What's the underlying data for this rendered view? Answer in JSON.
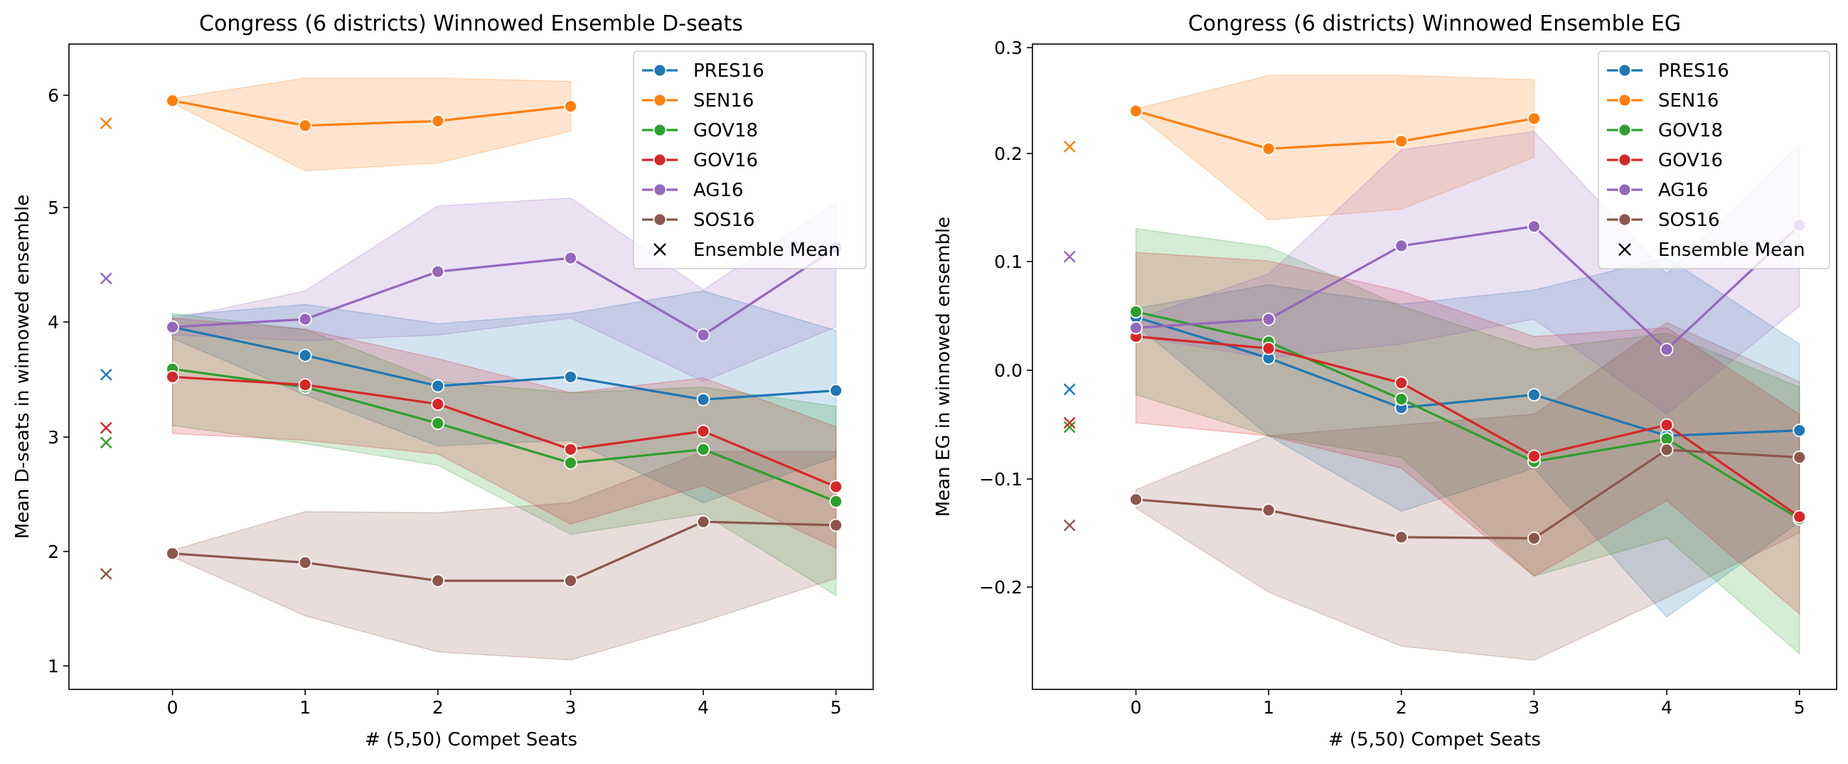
{
  "chart_data": [
    {
      "type": "line",
      "title": "Congress (6 districts) Winnowed Ensemble D-seats",
      "xlabel": "# (5,50) Compet Seats",
      "ylabel": "Mean D-seats in winnowed ensemble",
      "xlim": [
        -0.78,
        5.28
      ],
      "ylim": [
        0.8,
        6.5
      ],
      "xticks": [
        "0",
        "1",
        "2",
        "3",
        "4",
        "5"
      ],
      "yticks": [
        "1",
        "2",
        "3",
        "4",
        "5",
        "6"
      ],
      "ensemble_mean_x": -0.5,
      "legend_position": "top-right",
      "legend_marker_label": "Ensemble Mean",
      "series": [
        {
          "name": "PRES16",
          "color": "#1f77b4",
          "x": [
            0,
            1,
            2,
            3,
            4,
            5
          ],
          "y": [
            4.0,
            3.75,
            3.48,
            3.56,
            3.36,
            3.44
          ],
          "lower": [
            3.9,
            3.4,
            2.95,
            3.0,
            2.45,
            2.85
          ],
          "upper": [
            4.1,
            4.2,
            4.03,
            4.12,
            4.32,
            3.97
          ],
          "ensemble_mean": 3.58
        },
        {
          "name": "SEN16",
          "color": "#ff7f0e",
          "x": [
            0,
            1,
            2,
            3
          ],
          "y": [
            6.0,
            5.78,
            5.82,
            5.95
          ],
          "lower": [
            5.98,
            5.38,
            5.45,
            5.73
          ],
          "upper": [
            6.02,
            6.2,
            6.2,
            6.17
          ],
          "ensemble_mean": 5.8
        },
        {
          "name": "GOV18",
          "color": "#2ca02c",
          "x": [
            0,
            1,
            2,
            3,
            4,
            5
          ],
          "y": [
            3.63,
            3.47,
            3.15,
            2.8,
            2.92,
            2.46
          ],
          "lower": [
            3.13,
            2.97,
            2.78,
            2.17,
            2.35,
            1.63
          ],
          "upper": [
            4.12,
            3.98,
            3.52,
            3.42,
            3.47,
            3.3
          ],
          "ensemble_mean": 2.98
        },
        {
          "name": "GOV16",
          "color": "#d62728",
          "x": [
            0,
            1,
            2,
            3,
            4,
            5
          ],
          "y": [
            3.56,
            3.49,
            3.32,
            2.92,
            3.08,
            2.59
          ],
          "lower": [
            3.06,
            3.0,
            2.88,
            2.26,
            2.6,
            2.05
          ],
          "upper": [
            4.08,
            3.98,
            3.72,
            3.42,
            3.55,
            3.12
          ],
          "ensemble_mean": 3.11
        },
        {
          "name": "AG16",
          "color": "#9467bd",
          "x": [
            0,
            1,
            2,
            3,
            4,
            5
          ],
          "y": [
            4.0,
            4.07,
            4.49,
            4.61,
            3.93,
            4.7
          ],
          "lower": [
            3.93,
            3.88,
            3.93,
            4.08,
            3.52,
            4.0
          ],
          "upper": [
            4.07,
            4.32,
            5.07,
            5.14,
            4.33,
            5.1
          ],
          "ensemble_mean": 4.43
        },
        {
          "name": "SOS16",
          "color": "#8c564b",
          "x": [
            0,
            1,
            2,
            3,
            4,
            5
          ],
          "y": [
            2.0,
            1.92,
            1.76,
            1.76,
            2.28,
            2.25
          ],
          "lower": [
            1.97,
            1.45,
            1.13,
            1.06,
            1.4,
            1.78
          ],
          "upper": [
            2.03,
            2.37,
            2.36,
            2.45,
            2.9,
            2.9
          ],
          "ensemble_mean": 1.82
        }
      ]
    },
    {
      "type": "line",
      "title": "Congress (6 districts) Winnowed Ensemble EG",
      "xlabel": "# (5,50) Compet Seats",
      "ylabel": "Mean EG in winnowed ensemble",
      "xlim": [
        -0.78,
        5.28
      ],
      "ylim": [
        -0.295,
        0.303
      ],
      "xticks": [
        "0",
        "1",
        "2",
        "3",
        "4",
        "5"
      ],
      "yticks": [
        "−0.2",
        "−0.1",
        "0.0",
        "0.1",
        "0.2",
        "0.3"
      ],
      "ensemble_mean_x": -0.5,
      "legend_position": "top-right",
      "legend_marker_label": "Ensemble Mean",
      "series": [
        {
          "name": "PRES16",
          "color": "#1f77b4",
          "x": [
            0,
            1,
            2,
            3,
            4,
            5
          ],
          "y": [
            0.05,
            0.012,
            -0.034,
            -0.022,
            -0.06,
            -0.055
          ],
          "lower": [
            0.043,
            -0.06,
            -0.13,
            -0.09,
            -0.228,
            -0.14
          ],
          "upper": [
            0.058,
            0.08,
            0.062,
            0.075,
            0.105,
            0.025
          ],
          "ensemble_mean": -0.017
        },
        {
          "name": "SEN16",
          "color": "#ff7f0e",
          "x": [
            0,
            1,
            2,
            3
          ],
          "y": [
            0.241,
            0.206,
            0.213,
            0.234
          ],
          "lower": [
            0.239,
            0.14,
            0.15,
            0.198
          ],
          "upper": [
            0.243,
            0.274,
            0.274,
            0.27
          ],
          "ensemble_mean": 0.208
        },
        {
          "name": "GOV18",
          "color": "#2ca02c",
          "x": [
            0,
            1,
            2,
            3,
            4,
            5
          ],
          "y": [
            0.055,
            0.027,
            -0.026,
            -0.084,
            -0.063,
            -0.137
          ],
          "lower": [
            -0.022,
            -0.06,
            -0.08,
            -0.19,
            -0.155,
            -0.262
          ],
          "upper": [
            0.132,
            0.115,
            0.06,
            0.02,
            0.035,
            -0.015
          ],
          "ensemble_mean": -0.052
        },
        {
          "name": "GOV16",
          "color": "#d62728",
          "x": [
            0,
            1,
            2,
            3,
            4,
            5
          ],
          "y": [
            0.032,
            0.021,
            -0.011,
            -0.079,
            -0.05,
            -0.135
          ],
          "lower": [
            -0.048,
            -0.06,
            -0.09,
            -0.19,
            -0.12,
            -0.225
          ],
          "upper": [
            0.11,
            0.102,
            0.074,
            0.032,
            0.04,
            -0.04
          ],
          "ensemble_mean": -0.048
        },
        {
          "name": "AG16",
          "color": "#9467bd",
          "x": [
            0,
            1,
            2,
            3,
            4,
            5
          ],
          "y": [
            0.04,
            0.048,
            0.116,
            0.134,
            0.02,
            0.135
          ],
          "lower": [
            0.032,
            0.012,
            0.025,
            0.048,
            -0.04,
            0.06
          ],
          "upper": [
            0.048,
            0.09,
            0.205,
            0.222,
            0.09,
            0.21
          ],
          "ensemble_mean": 0.106
        },
        {
          "name": "SOS16",
          "color": "#8c564b",
          "x": [
            0,
            1,
            2,
            3,
            4,
            5
          ],
          "y": [
            -0.119,
            -0.129,
            -0.154,
            -0.155,
            -0.073,
            -0.08
          ],
          "lower": [
            -0.127,
            -0.205,
            -0.255,
            -0.268,
            -0.21,
            -0.15
          ],
          "upper": [
            -0.11,
            -0.06,
            -0.05,
            -0.04,
            0.045,
            -0.01
          ],
          "ensemble_mean": -0.143
        }
      ]
    }
  ]
}
